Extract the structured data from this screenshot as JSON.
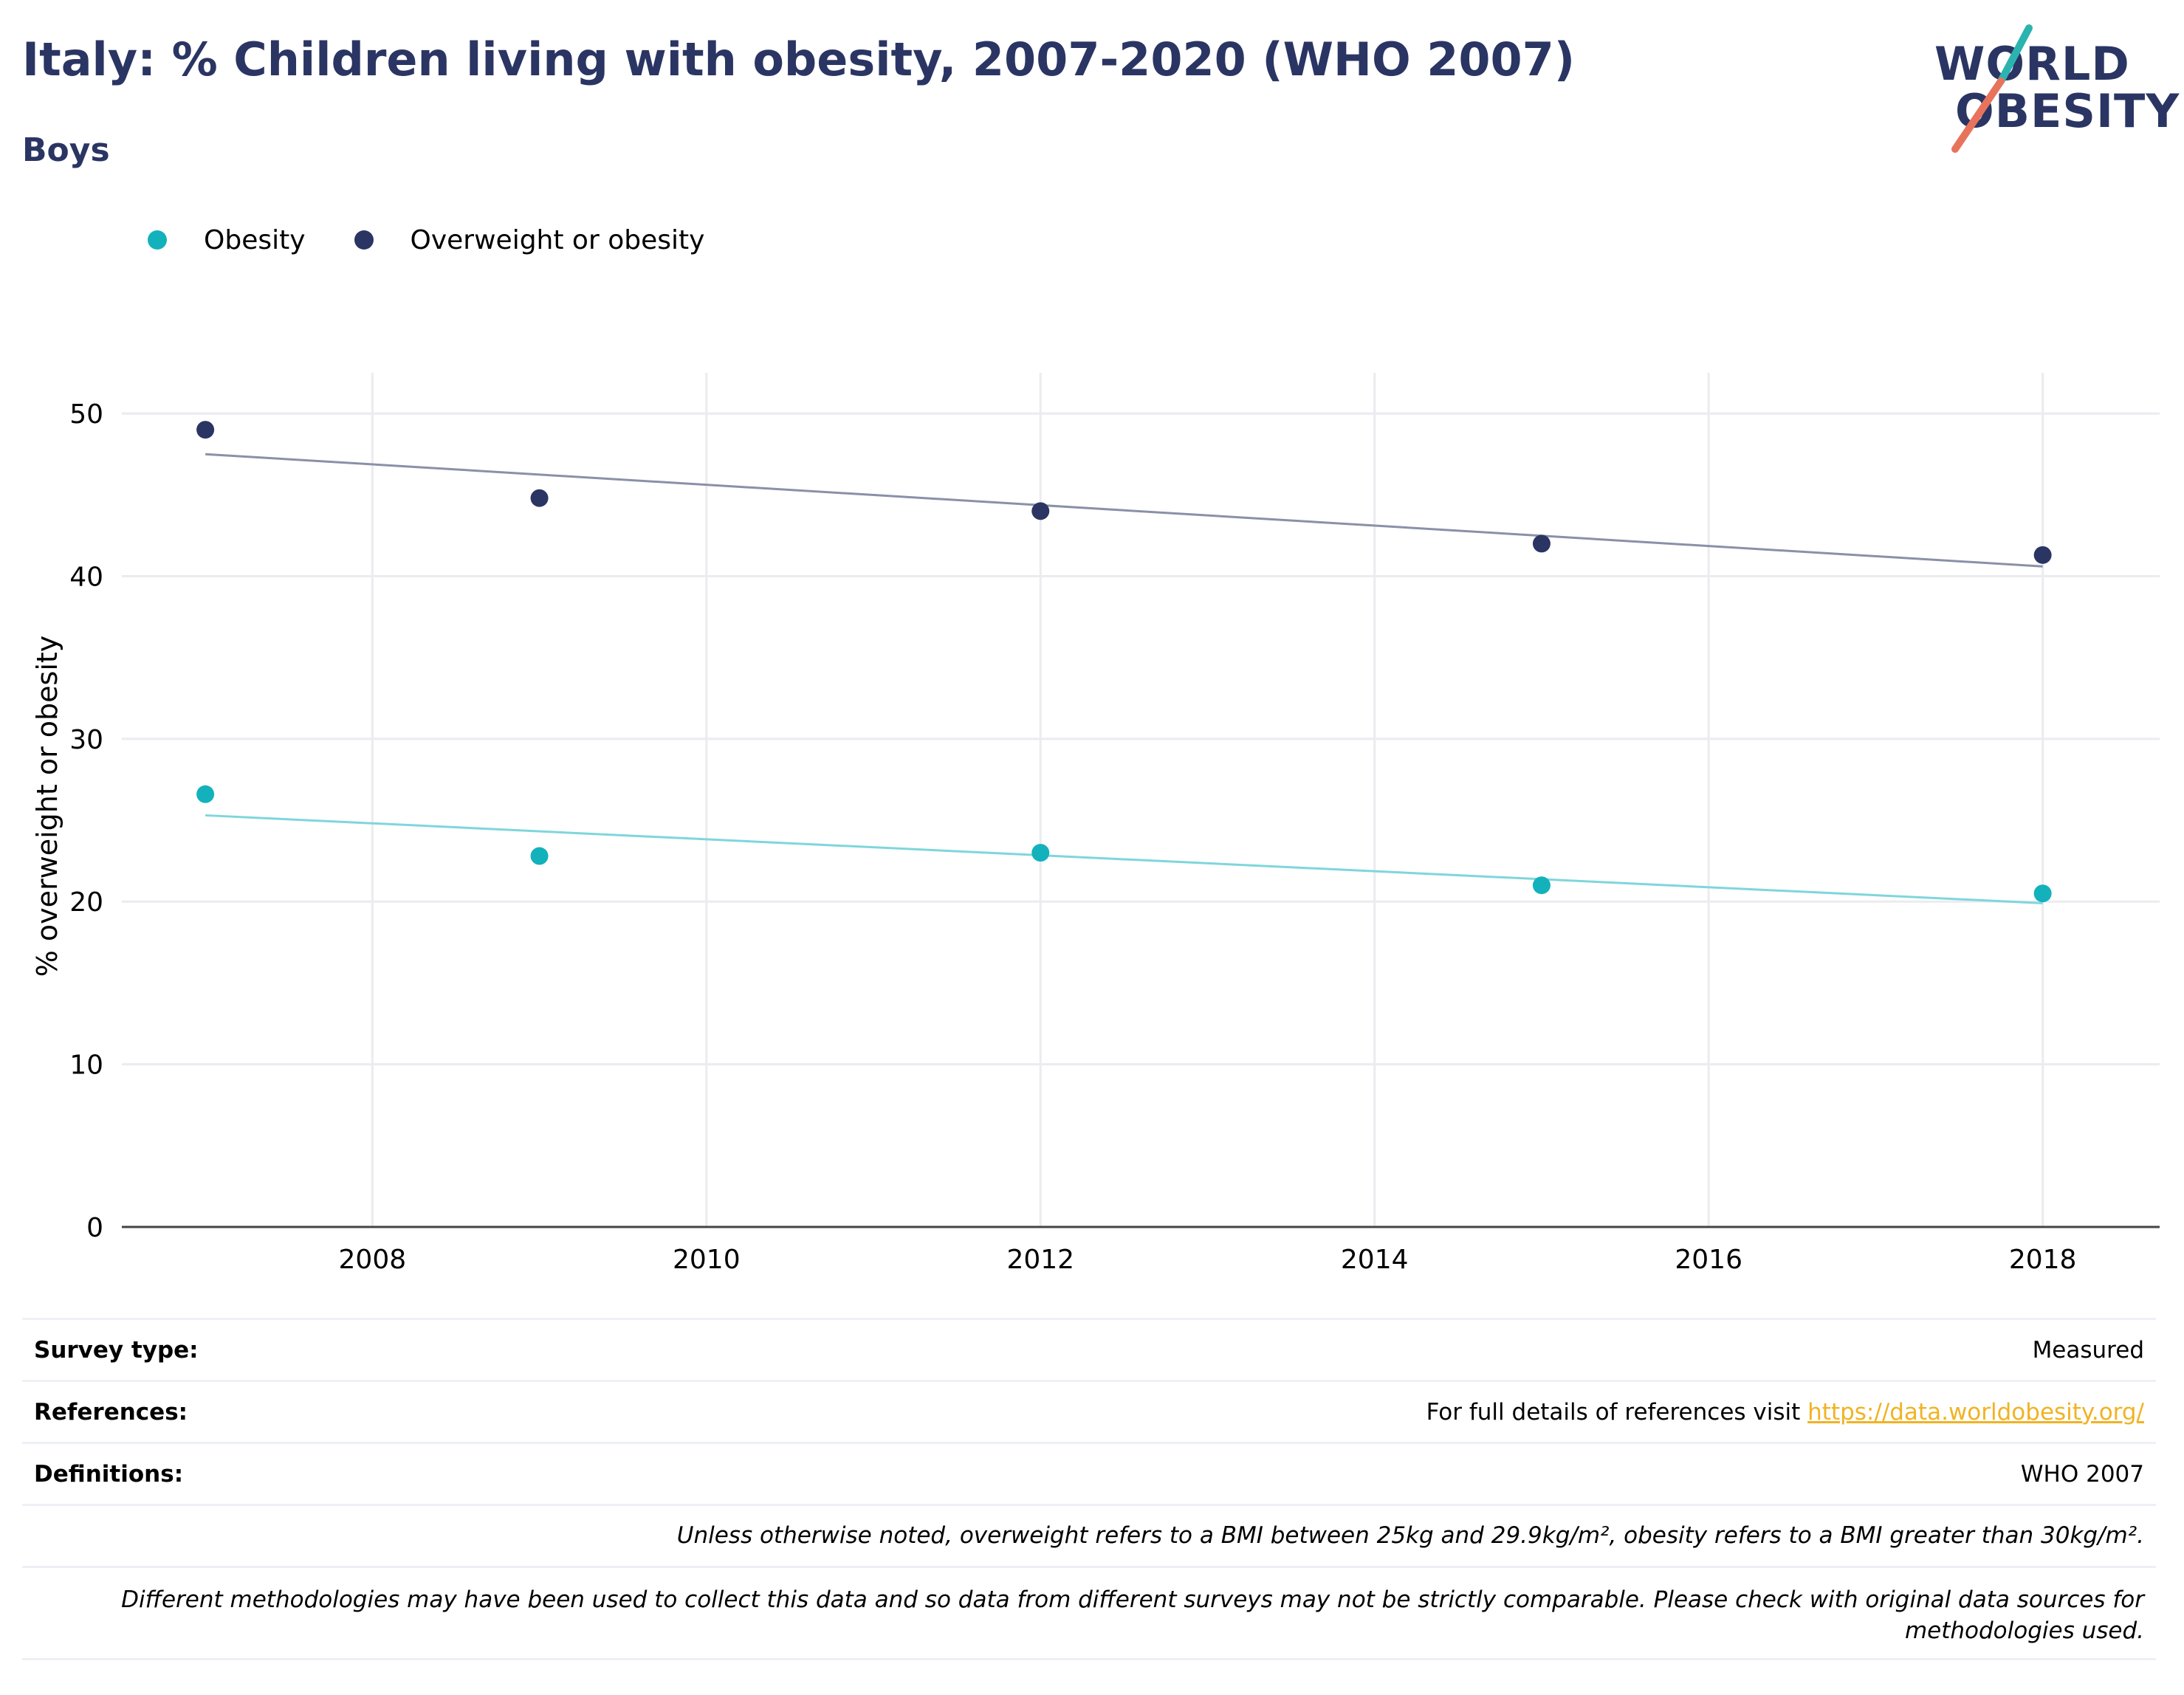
{
  "header": {
    "title": "Italy: % Children living with obesity, 2007-2020 (WHO 2007)",
    "subtitle": "Boys"
  },
  "logo": {
    "line1": "WORLD",
    "line2": "OBESITY"
  },
  "colors": {
    "obesity": "#13b1bc",
    "overweight": "#2a3563",
    "title": "#2a3563",
    "link": "#f0b323"
  },
  "chart_data": {
    "type": "scatter",
    "ylabel": "% overweight or obesity",
    "xlabel": "",
    "xlim": [
      2006.5,
      2018.7
    ],
    "ylim": [
      0,
      52.5
    ],
    "xticks": [
      2008,
      2010,
      2012,
      2014,
      2016,
      2018
    ],
    "yticks": [
      0,
      10,
      20,
      30,
      40,
      50
    ],
    "grid": true,
    "legend_position": "top-left",
    "series": [
      {
        "name": "Obesity",
        "color": "#13b1bc",
        "x": [
          2007,
          2009,
          2012,
          2015,
          2018
        ],
        "y": [
          26.6,
          22.8,
          23.0,
          21.0,
          20.5
        ],
        "trend": {
          "x": [
            2007,
            2018
          ],
          "y": [
            25.3,
            19.9
          ],
          "color": "#7fd6dc"
        }
      },
      {
        "name": "Overweight or obesity",
        "color": "#2a3563",
        "x": [
          2007,
          2009,
          2012,
          2015,
          2018
        ],
        "y": [
          49.0,
          44.8,
          44.0,
          42.0,
          41.3
        ],
        "trend": {
          "x": [
            2007,
            2018
          ],
          "y": [
            47.5,
            40.6
          ],
          "color": "#8a90a8"
        }
      }
    ]
  },
  "footer": {
    "survey_type_label": "Survey type:",
    "survey_type_value": "Measured",
    "references_label": "References:",
    "references_text": "For full details of references visit ",
    "references_link": "https://data.worldobesity.org/",
    "definitions_label": "Definitions:",
    "definitions_value": "WHO 2007",
    "note1": "Unless otherwise noted, overweight refers to a BMI between 25kg and 29.9kg/m², obesity refers to a BMI greater than 30kg/m².",
    "note2": "Different methodologies may have been used to collect this data and so data from different surveys may not be strictly comparable. Please check with original data sources for methodologies used."
  }
}
